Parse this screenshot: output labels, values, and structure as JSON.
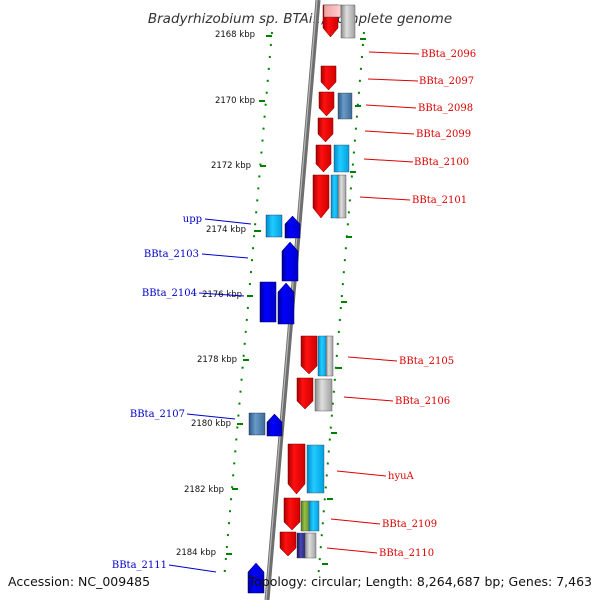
{
  "title": "Bradyrhizobium sp. BTAi1, complete genome",
  "footer": {
    "accession": "Accession: NC_009485",
    "summary": "Topology: circular; Length: 8,264,687 bp; Genes: 7,463"
  },
  "ticks": [
    "2168 kbp",
    "2170 kbp",
    "2172 kbp",
    "2174 kbp",
    "2176 kbp",
    "2178 kbp",
    "2180 kbp",
    "2182 kbp",
    "2184 kbp"
  ],
  "right_labels": [
    "BBta_2096",
    "BBta_2097",
    "BBta_2098",
    "BBta_2099",
    "BBta_2100",
    "BBta_2101",
    "BBta_2105",
    "BBta_2106",
    "hyuA",
    "BBta_2109",
    "BBta_2110"
  ],
  "left_labels": [
    "upp",
    "BBta_2103",
    "BBta_2104",
    "BBta_2107",
    "BBta_2111"
  ],
  "colors": {
    "forward_strand": "#ff0000",
    "reverse_strand": "#0000ff",
    "backbone": "#808080",
    "ruler": "#008000",
    "cyan": "#00aaee",
    "steel": "#4a7faf",
    "gray": "#b0b0b0",
    "olive": "#6a9a2a",
    "navy": "#22227a"
  }
}
